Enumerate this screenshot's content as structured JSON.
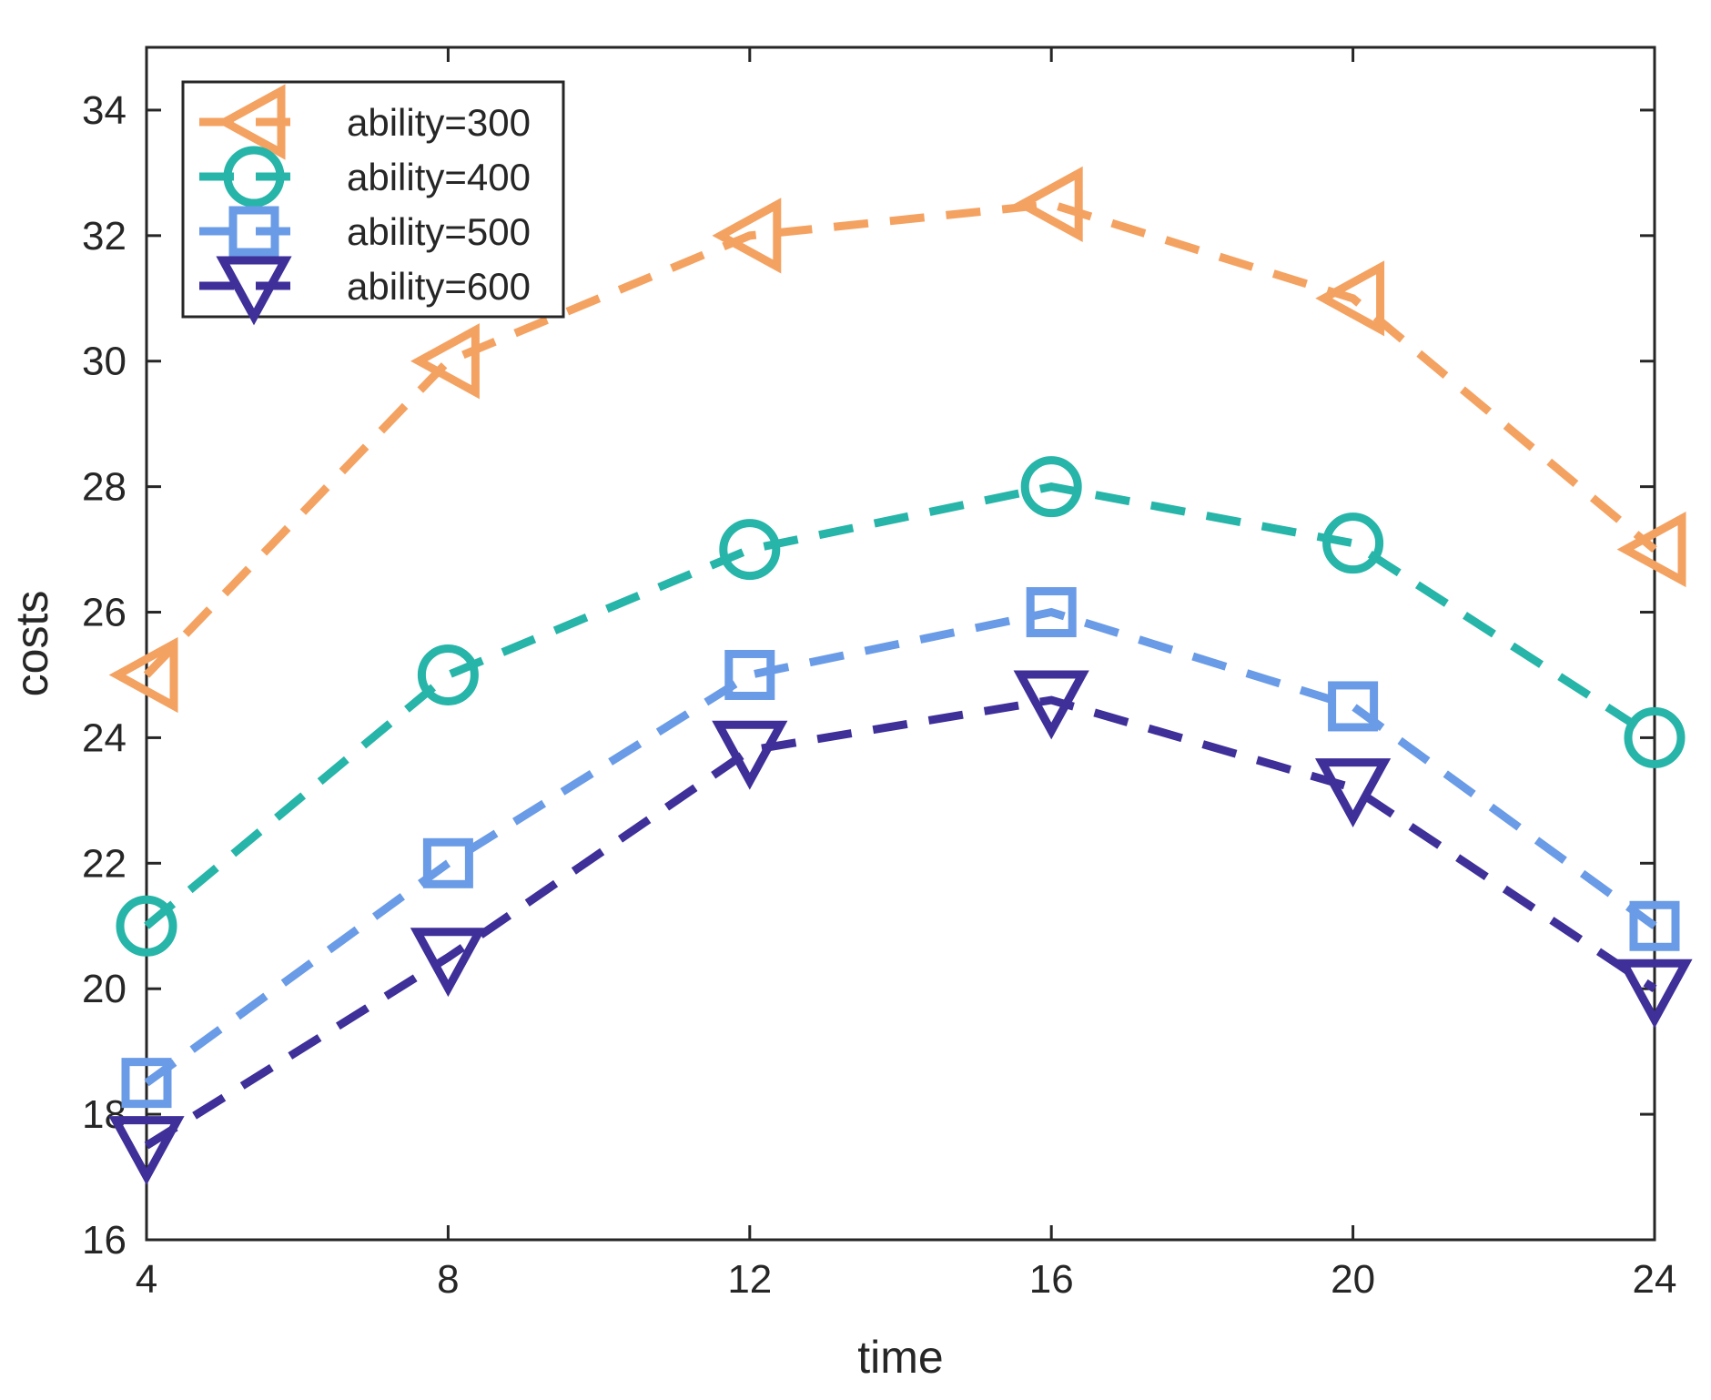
{
  "chart_data": {
    "type": "line",
    "title": "",
    "xlabel": "time",
    "ylabel": "costs",
    "xlim": [
      4,
      24
    ],
    "ylim": [
      16,
      35
    ],
    "xticks": [
      4,
      8,
      12,
      16,
      20,
      24
    ],
    "yticks": [
      16,
      18,
      20,
      22,
      24,
      26,
      28,
      30,
      32,
      34
    ],
    "grid": false,
    "legend_position": "top-left",
    "x": [
      4,
      8,
      12,
      16,
      20,
      24
    ],
    "series": [
      {
        "name": "ability=300",
        "values": [
          25,
          30,
          32,
          32.5,
          31,
          27
        ],
        "color": "#F4A261",
        "marker": "triangle-left"
      },
      {
        "name": "ability=400",
        "values": [
          21,
          25,
          27,
          28,
          27.1,
          24
        ],
        "color": "#26B5A8",
        "marker": "circle"
      },
      {
        "name": "ability=500",
        "values": [
          18.5,
          22,
          25,
          26,
          24.5,
          21
        ],
        "color": "#6A9BE6",
        "marker": "square"
      },
      {
        "name": "ability=600",
        "values": [
          17.5,
          20.5,
          23.8,
          24.6,
          23.2,
          20
        ],
        "color": "#3E2F99",
        "marker": "triangle-down"
      }
    ]
  }
}
